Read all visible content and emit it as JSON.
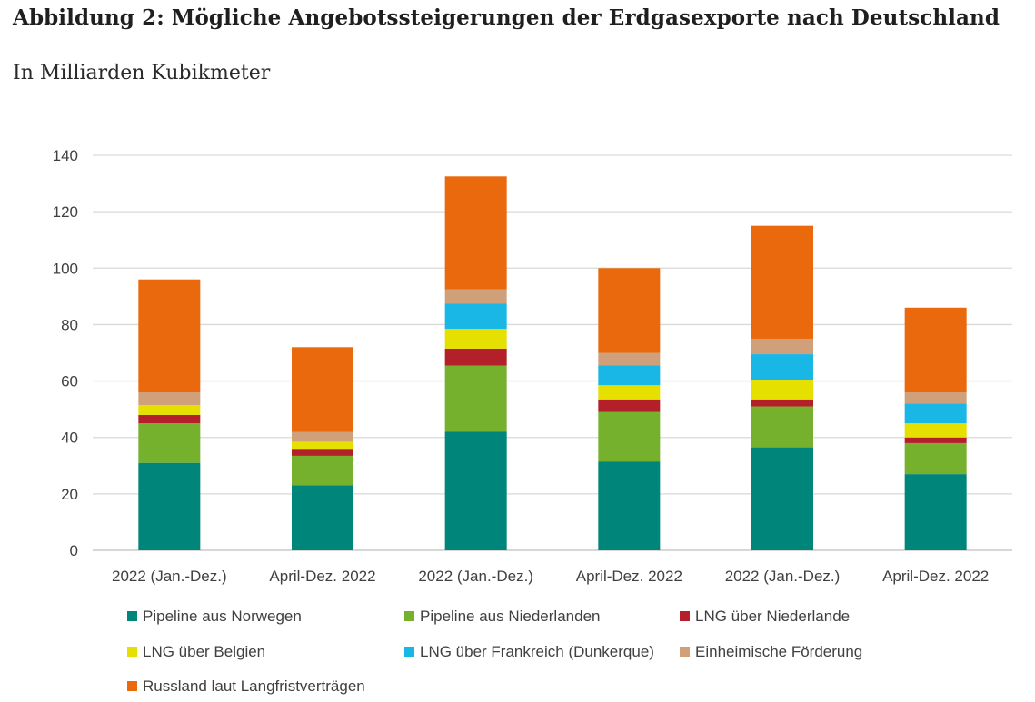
{
  "title": "Abbildung 2: Mögliche Angebotssteigerungen der Erdgasexporte nach Deutschland",
  "subtitle": "In Milliarden Kubikmeter",
  "chart_data": {
    "type": "bar",
    "stacked": true,
    "categories": [
      "2022 (Jan.-Dez.)",
      "April-Dez. 2022",
      "2022 (Jan.-Dez.)",
      "April-Dez. 2022",
      "2022 (Jan.-Dez.)",
      "April-Dez. 2022"
    ],
    "ylim": [
      0,
      140
    ],
    "yticks": [
      0,
      20,
      40,
      60,
      80,
      100,
      120,
      140
    ],
    "grid": true,
    "legend_position": "bottom",
    "series": [
      {
        "name": "Pipeline aus Norwegen",
        "color": "#00857a",
        "values": [
          31,
          23,
          42,
          31.5,
          36.5,
          27
        ]
      },
      {
        "name": "Pipeline aus Niederlanden",
        "color": "#76b12e",
        "values": [
          14,
          10.5,
          23.5,
          17.5,
          14.5,
          11
        ]
      },
      {
        "name": "LNG über Niederlande",
        "color": "#b3202a",
        "values": [
          3,
          2.5,
          6,
          4.5,
          2.5,
          2
        ]
      },
      {
        "name": "LNG über Belgien",
        "color": "#e6e000",
        "values": [
          3.5,
          2.5,
          7,
          5,
          7,
          5
        ]
      },
      {
        "name": "LNG über Frankreich (Dunkerque)",
        "color": "#18b7e6",
        "values": [
          0,
          0,
          9,
          7,
          9,
          7
        ]
      },
      {
        "name": "Einheimische Förderung",
        "color": "#cfa07a",
        "values": [
          4.5,
          3.5,
          5,
          4.5,
          5.5,
          4
        ]
      },
      {
        "name": "Russland laut Langfristverträgen",
        "color": "#e9690c",
        "values": [
          40,
          30,
          40,
          30,
          40,
          30
        ]
      }
    ]
  }
}
